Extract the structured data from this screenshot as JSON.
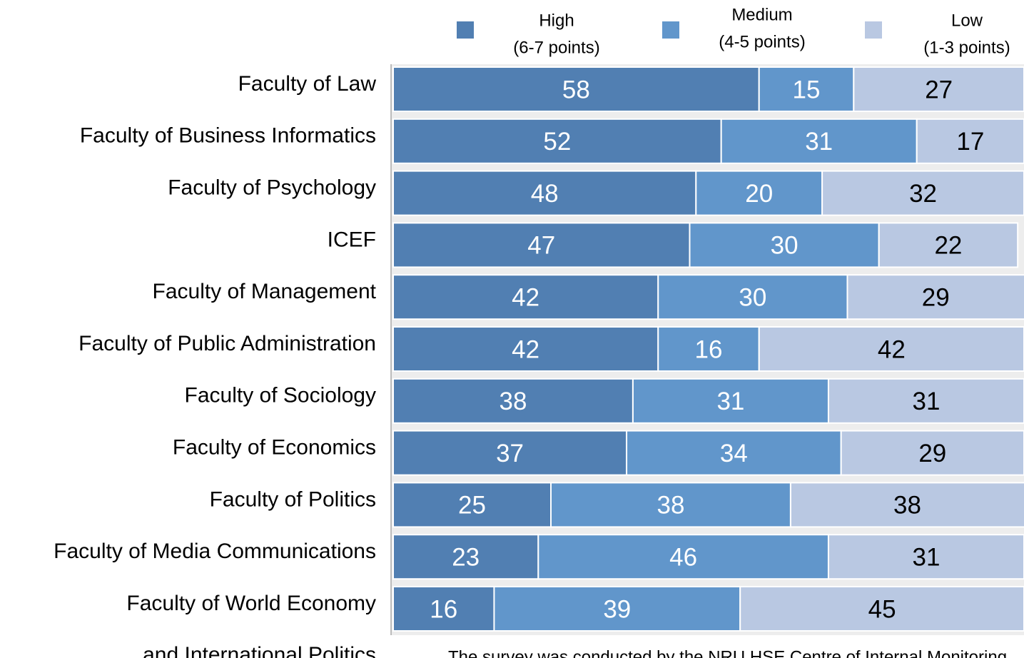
{
  "chart_data": {
    "type": "stacked-barh",
    "categories": [
      "Faculty of Law",
      "Faculty of Business Informatics",
      "Faculty of Psychology",
      "ICEF",
      "Faculty of Management",
      "Faculty of Public Administration",
      "Faculty of Sociology",
      "Faculty of Economics",
      "Faculty of Politics",
      "Faculty of Media Communications",
      "Faculty of World Economy\nand International Politics"
    ],
    "series": [
      {
        "name": "High",
        "detail": "(6-7 points)",
        "color": "#517fb2",
        "text_color": "#ffffff",
        "values": [
          58,
          52,
          48,
          47,
          42,
          42,
          38,
          37,
          25,
          23,
          16
        ]
      },
      {
        "name": "Medium",
        "detail": "(4-5 points)",
        "color": "#6196cb",
        "text_color": "#ffffff",
        "values": [
          15,
          31,
          20,
          30,
          30,
          16,
          31,
          34,
          38,
          46,
          39
        ]
      },
      {
        "name": "Low",
        "detail": "(1-3 points)",
        "color": "#b9c8e2",
        "text_color": "#000000",
        "values": [
          27,
          17,
          32,
          22,
          29,
          42,
          31,
          29,
          38,
          31,
          45
        ]
      }
    ],
    "xlim": [
      0,
      100
    ],
    "legend": "top",
    "footnote": "The survey was conducted by the NRU HSE Centre of Internal Monitoring"
  }
}
